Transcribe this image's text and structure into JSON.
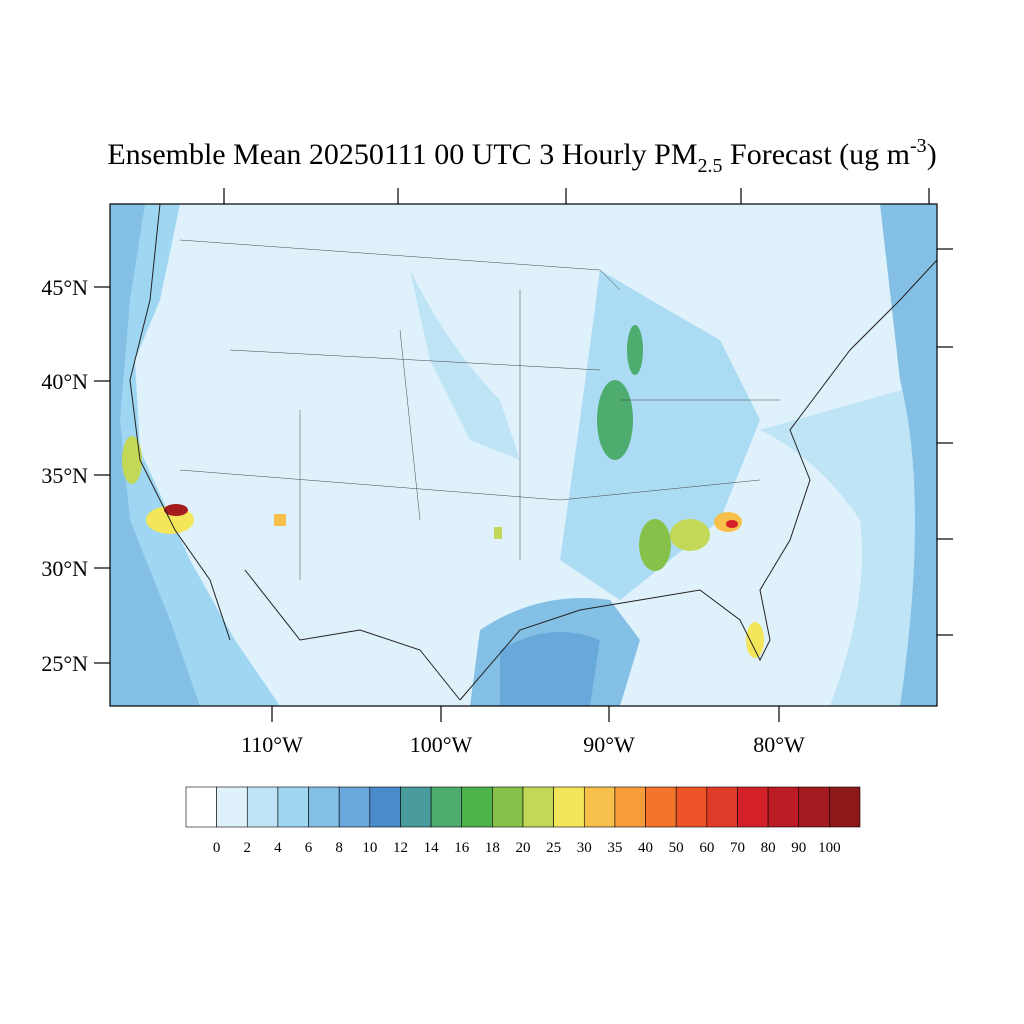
{
  "title": {
    "main": "Ensemble Mean 20250111 00 UTC 3 Hourly PM",
    "subscript": "2.5",
    "after_subscript": " Forecast (ug m",
    "superscript": "-3",
    "end": ")"
  },
  "lat_labels": [
    "45°N",
    "40°N",
    "35°N",
    "30°N",
    "25°N"
  ],
  "lon_labels": [
    "110°W",
    "100°W",
    "90°W",
    "80°W"
  ],
  "colorbar": {
    "levels": [
      0,
      2,
      4,
      6,
      8,
      10,
      12,
      14,
      16,
      18,
      20,
      25,
      30,
      35,
      40,
      50,
      60,
      70,
      80,
      90,
      100
    ],
    "colors": [
      "#ffffff",
      "#dff1fb",
      "#bfe4f6",
      "#9fd6f2",
      "#84c0e6",
      "#68a8da",
      "#4a8cca",
      "#4a9c9c",
      "#4eac6e",
      "#4cb44a",
      "#86c24a",
      "#c4d858",
      "#f4e65a",
      "#f7c04a",
      "#f89c3c",
      "#f5742c",
      "#ec5428",
      "#e03a28",
      "#d42028",
      "#bc1c24",
      "#a41c20",
      "#8c1818"
    ]
  }
}
